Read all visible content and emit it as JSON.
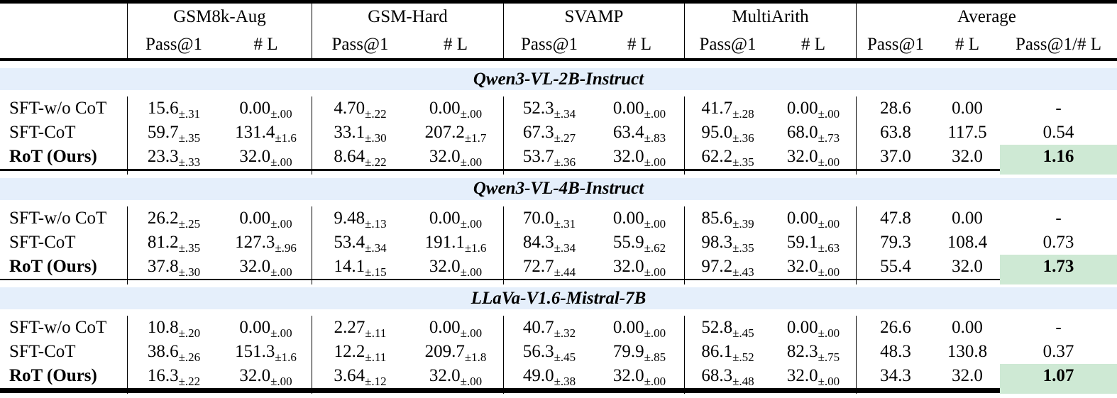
{
  "colors": {
    "section_band": "#e5effb",
    "highlight": "#cee9d4",
    "rule": "#000000"
  },
  "header": {
    "groups": [
      {
        "label": "GSM8k-Aug"
      },
      {
        "label": "GSM-Hard"
      },
      {
        "label": "SVAMP"
      },
      {
        "label": "MultiArith"
      },
      {
        "label": "Average"
      }
    ],
    "subcols": [
      "Pass@1",
      "# L",
      "Pass@1",
      "# L",
      "Pass@1",
      "# L",
      "Pass@1",
      "# L",
      "Pass@1",
      "# L",
      "Pass@1/# L"
    ]
  },
  "sections": [
    {
      "title": "Qwen3-VL-2B-Instruct",
      "rows": [
        {
          "label": "SFT-w/o CoT",
          "bold": false,
          "highlight_last": false,
          "cells": [
            [
              "15.6",
              "±.31"
            ],
            [
              "0.00",
              "±.00"
            ],
            [
              "4.70",
              "±.22"
            ],
            [
              "0.00",
              "±.00"
            ],
            [
              "52.3",
              "±.34"
            ],
            [
              "0.00",
              "±.00"
            ],
            [
              "41.7",
              "±.28"
            ],
            [
              "0.00",
              "±.00"
            ],
            [
              "28.6"
            ],
            [
              "0.00"
            ],
            [
              "-"
            ]
          ]
        },
        {
          "label": "SFT-CoT",
          "bold": false,
          "highlight_last": false,
          "cells": [
            [
              "59.7",
              "±.35"
            ],
            [
              "131.4",
              "±1.6"
            ],
            [
              "33.1",
              "±.30"
            ],
            [
              "207.2",
              "±1.7"
            ],
            [
              "67.3",
              "±.27"
            ],
            [
              "63.4",
              "±.83"
            ],
            [
              "95.0",
              "±.36"
            ],
            [
              "68.0",
              "±.73"
            ],
            [
              "63.8"
            ],
            [
              "117.5"
            ],
            [
              "0.54"
            ]
          ]
        },
        {
          "label": "RoT (Ours)",
          "bold": true,
          "highlight_last": true,
          "cells": [
            [
              "23.3",
              "±.33"
            ],
            [
              "32.0",
              "±.00"
            ],
            [
              "8.64",
              "±.22"
            ],
            [
              "32.0",
              "±.00"
            ],
            [
              "53.7",
              "±.36"
            ],
            [
              "32.0",
              "±.00"
            ],
            [
              "62.2",
              "±.35"
            ],
            [
              "32.0",
              "±.00"
            ],
            [
              "37.0"
            ],
            [
              "32.0"
            ],
            [
              "1.16"
            ]
          ]
        }
      ]
    },
    {
      "title": "Qwen3-VL-4B-Instruct",
      "rows": [
        {
          "label": "SFT-w/o CoT",
          "bold": false,
          "highlight_last": false,
          "cells": [
            [
              "26.2",
              "±.25"
            ],
            [
              "0.00",
              "±.00"
            ],
            [
              "9.48",
              "±.13"
            ],
            [
              "0.00",
              "±.00"
            ],
            [
              "70.0",
              "±.31"
            ],
            [
              "0.00",
              "±.00"
            ],
            [
              "85.6",
              "±.39"
            ],
            [
              "0.00",
              "±.00"
            ],
            [
              "47.8"
            ],
            [
              "0.00"
            ],
            [
              "-"
            ]
          ]
        },
        {
          "label": "SFT-CoT",
          "bold": false,
          "highlight_last": false,
          "cells": [
            [
              "81.2",
              "±.35"
            ],
            [
              "127.3",
              "±.96"
            ],
            [
              "53.4",
              "±.34"
            ],
            [
              "191.1",
              "±1.6"
            ],
            [
              "84.3",
              "±.34"
            ],
            [
              "55.9",
              "±.62"
            ],
            [
              "98.3",
              "±.35"
            ],
            [
              "59.1",
              "±.63"
            ],
            [
              "79.3"
            ],
            [
              "108.4"
            ],
            [
              "0.73"
            ]
          ]
        },
        {
          "label": "RoT (Ours)",
          "bold": true,
          "highlight_last": true,
          "cells": [
            [
              "37.8",
              "±.30"
            ],
            [
              "32.0",
              "±.00"
            ],
            [
              "14.1",
              "±.15"
            ],
            [
              "32.0",
              "±.00"
            ],
            [
              "72.7",
              "±.44"
            ],
            [
              "32.0",
              "±.00"
            ],
            [
              "97.2",
              "±.43"
            ],
            [
              "32.0",
              "±.00"
            ],
            [
              "55.4"
            ],
            [
              "32.0"
            ],
            [
              "1.73"
            ]
          ]
        }
      ]
    },
    {
      "title": "LLaVa-V1.6-Mistral-7B",
      "rows": [
        {
          "label": "SFT-w/o CoT",
          "bold": false,
          "highlight_last": false,
          "cells": [
            [
              "10.8",
              "±.20"
            ],
            [
              "0.00",
              "±.00"
            ],
            [
              "2.27",
              "±.11"
            ],
            [
              "0.00",
              "±.00"
            ],
            [
              "40.7",
              "±.32"
            ],
            [
              "0.00",
              "±.00"
            ],
            [
              "52.8",
              "±.45"
            ],
            [
              "0.00",
              "±.00"
            ],
            [
              "26.6"
            ],
            [
              "0.00"
            ],
            [
              "-"
            ]
          ]
        },
        {
          "label": "SFT-CoT",
          "bold": false,
          "highlight_last": false,
          "cells": [
            [
              "38.6",
              "±.26"
            ],
            [
              "151.3",
              "±1.6"
            ],
            [
              "12.2",
              "±.11"
            ],
            [
              "209.7",
              "±1.8"
            ],
            [
              "56.3",
              "±.45"
            ],
            [
              "79.9",
              "±.85"
            ],
            [
              "86.1",
              "±.52"
            ],
            [
              "82.3",
              "±.75"
            ],
            [
              "48.3"
            ],
            [
              "130.8"
            ],
            [
              "0.37"
            ]
          ]
        },
        {
          "label": "RoT (Ours)",
          "bold": true,
          "highlight_last": true,
          "cells": [
            [
              "16.3",
              "±.22"
            ],
            [
              "32.0",
              "±.00"
            ],
            [
              "3.64",
              "±.12"
            ],
            [
              "32.0",
              "±.00"
            ],
            [
              "49.0",
              "±.38"
            ],
            [
              "32.0",
              "±.00"
            ],
            [
              "68.3",
              "±.48"
            ],
            [
              "32.0",
              "±.00"
            ],
            [
              "34.3"
            ],
            [
              "32.0"
            ],
            [
              "1.07"
            ]
          ]
        }
      ]
    }
  ]
}
